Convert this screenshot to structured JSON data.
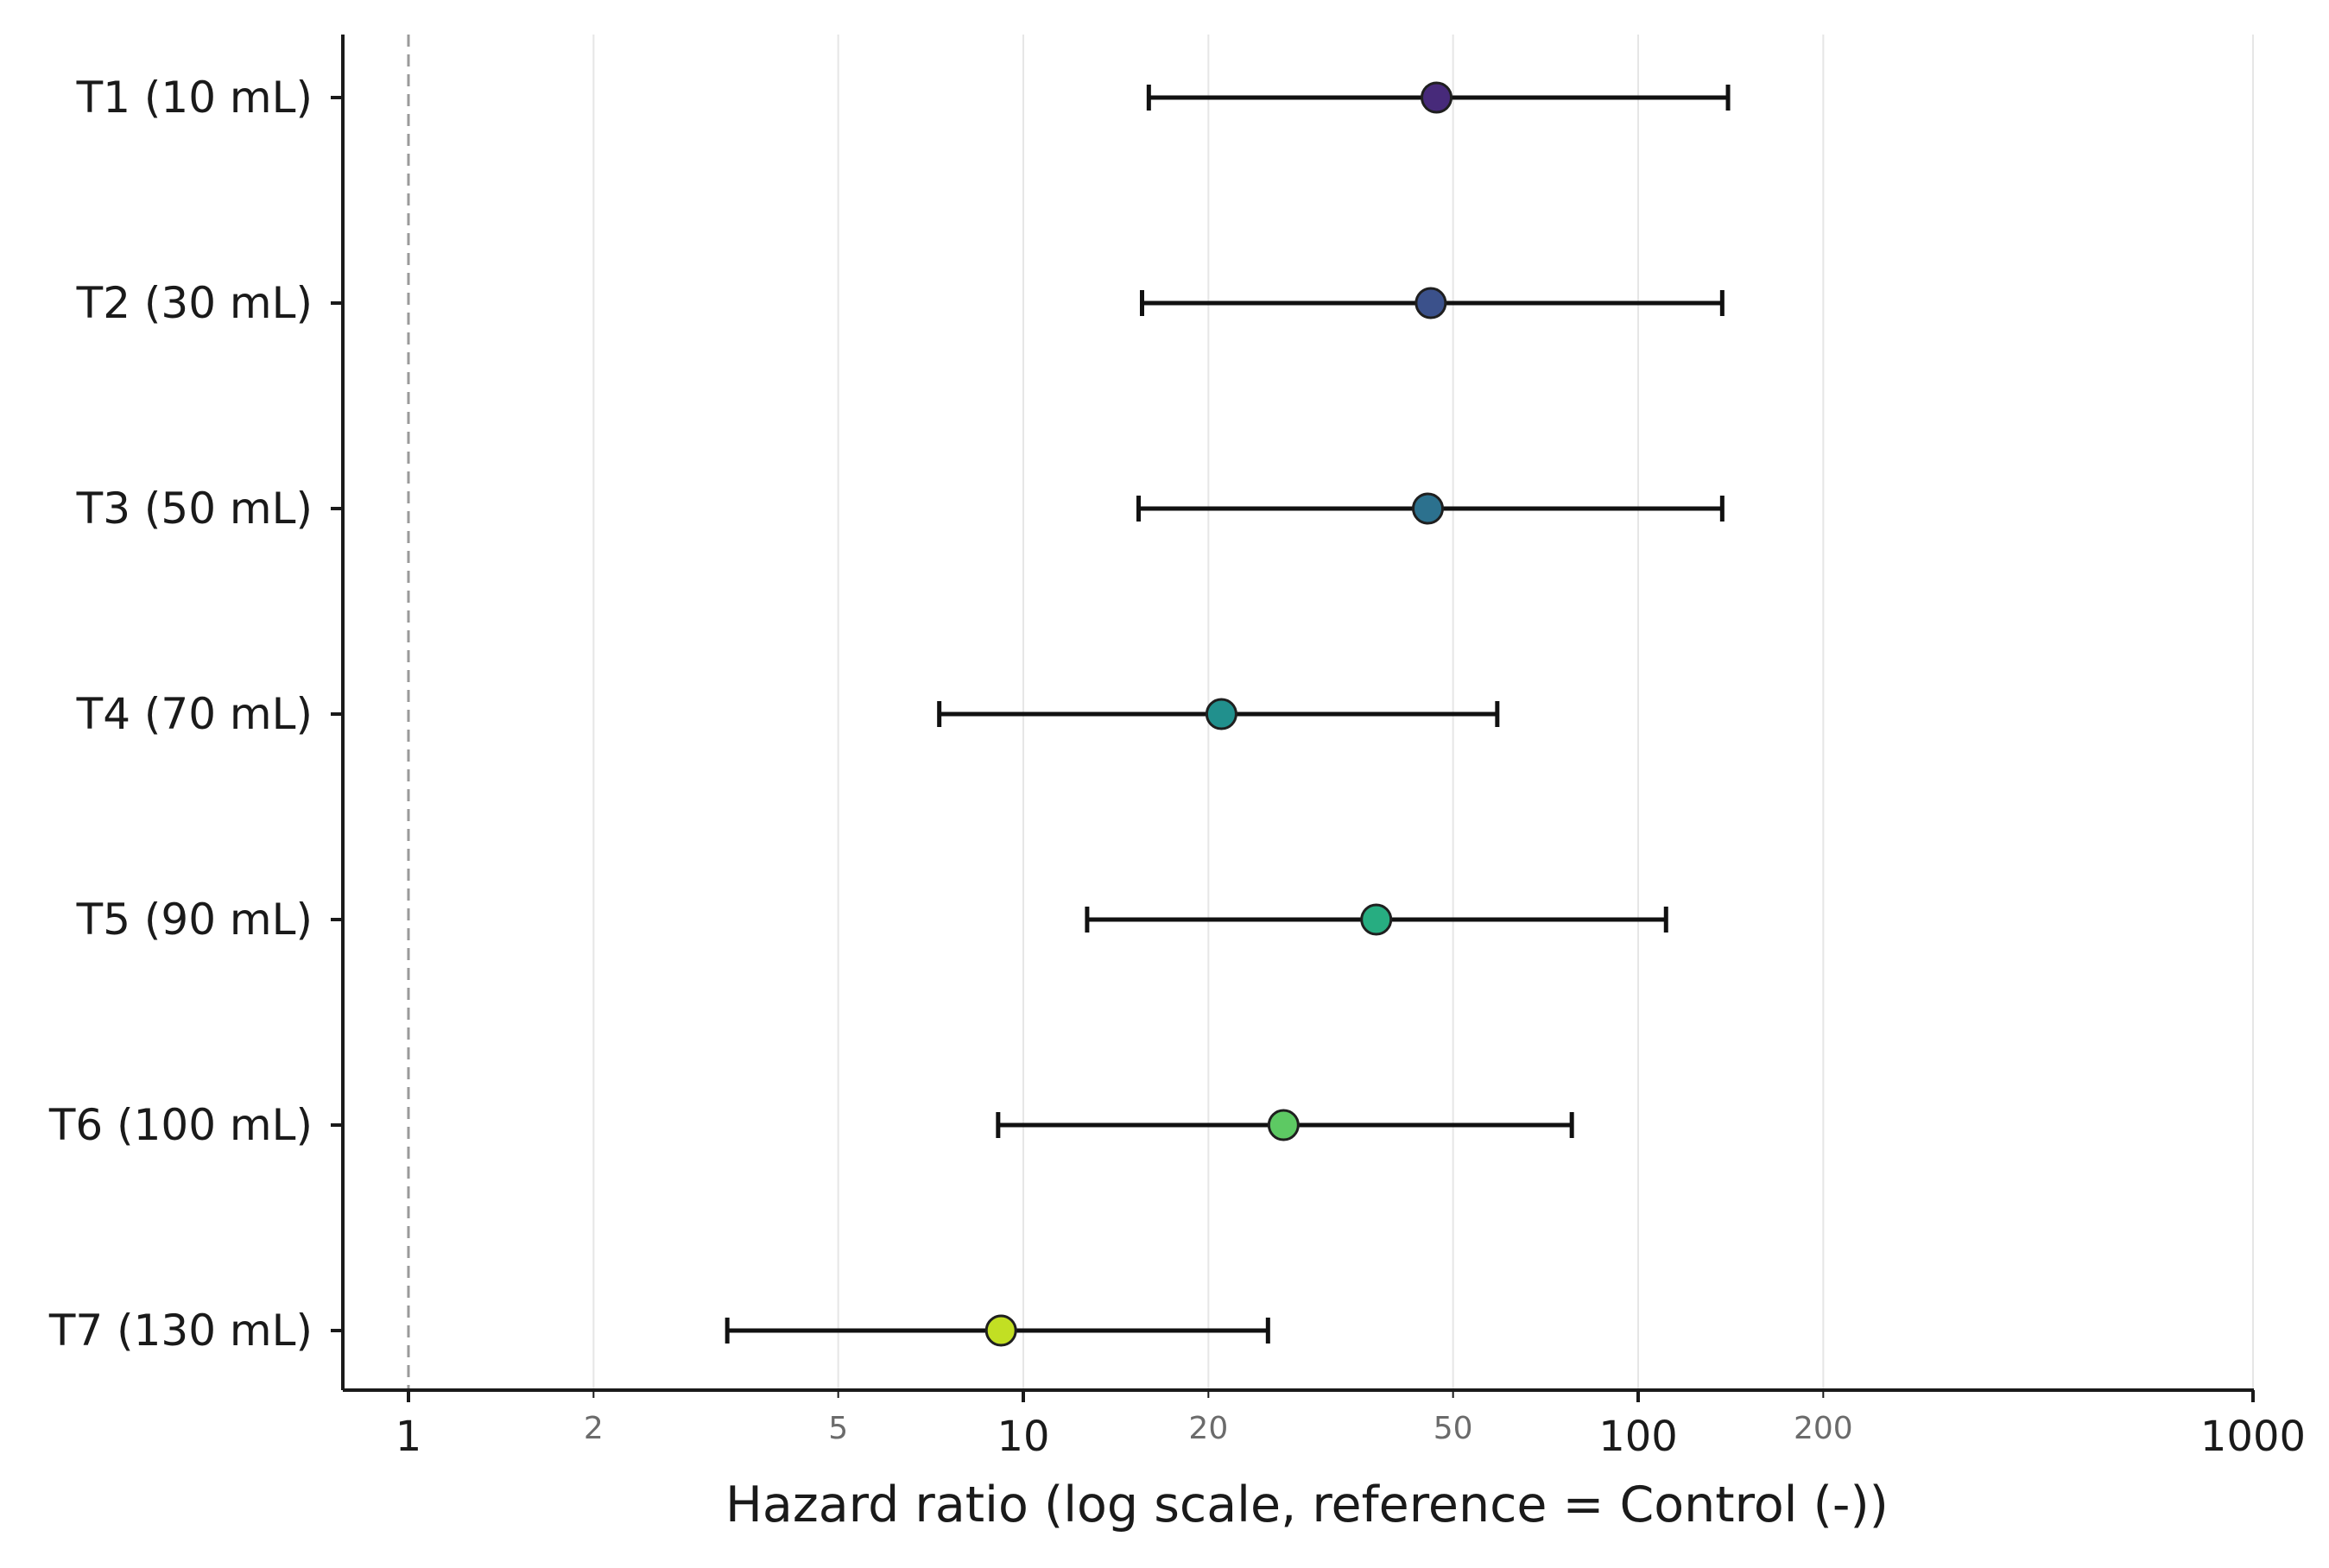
{
  "chart_data": {
    "type": "forest",
    "xlabel": "Hazard ratio (log scale, reference = Control (-))",
    "ylabel": "",
    "title": "",
    "x_scale": "log",
    "xlim": [
      0.8,
      1000
    ],
    "major_ticks": [
      {
        "value": 1,
        "label": "1"
      },
      {
        "value": 10,
        "label": "10"
      },
      {
        "value": 100,
        "label": "100"
      },
      {
        "value": 1000,
        "label": "1000"
      }
    ],
    "minor_ticks": [
      {
        "value": 2,
        "label": "2"
      },
      {
        "value": 5,
        "label": "5"
      },
      {
        "value": 20,
        "label": "20"
      },
      {
        "value": 50,
        "label": "50"
      },
      {
        "value": 200,
        "label": "200"
      }
    ],
    "reference_line": 1,
    "grid": "vertical",
    "categories": [
      "T1 (10 mL)",
      "T2 (30 mL)",
      "T3 (50 mL)",
      "T4 (70 mL)",
      "T5 (90 mL)",
      "T6 (100 mL)",
      "T7 (130 mL)"
    ],
    "estimates": [
      47,
      46,
      45.5,
      21,
      37.5,
      26.5,
      9.2
    ],
    "ci_lower": [
      16,
      15.6,
      15.4,
      7.3,
      12.7,
      9.1,
      3.3
    ],
    "ci_upper": [
      140,
      137,
      137,
      59,
      111,
      78,
      25
    ],
    "colors": [
      "#472a7a",
      "#3b518b",
      "#2c718e",
      "#21908d",
      "#27ad81",
      "#5dc963",
      "#c2df23"
    ]
  }
}
